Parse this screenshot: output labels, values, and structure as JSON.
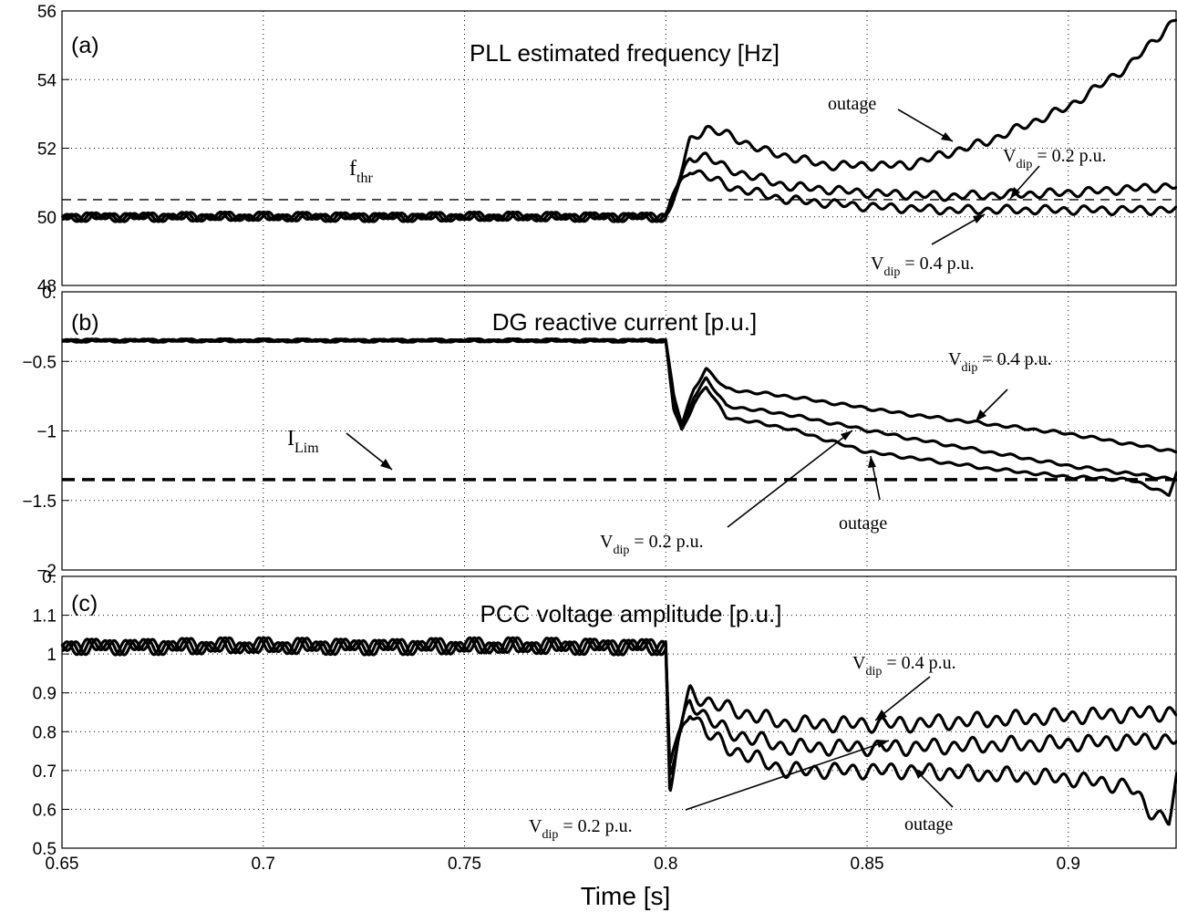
{
  "chart_data": [
    {
      "type": "line",
      "panel_label": "(a)",
      "title": "PLL estimated frequency [Hz]",
      "xlim": [
        0.65,
        0.927
      ],
      "ylim": [
        48,
        56
      ],
      "yticks": [
        "48",
        "50",
        "52",
        "54",
        "56"
      ],
      "grid": true,
      "reference_lines": [
        {
          "label": "f",
          "subscript": "thr",
          "value": 50.5,
          "style": "thin-dashed"
        }
      ],
      "series": [
        {
          "name": "outage",
          "x": [
            0.65,
            0.8,
            0.803,
            0.806,
            0.81,
            0.815,
            0.825,
            0.84,
            0.86,
            0.88,
            0.9,
            0.915,
            0.927
          ],
          "y": [
            50.0,
            50.0,
            51.0,
            52.2,
            52.6,
            52.4,
            51.9,
            51.5,
            51.5,
            52.2,
            53.2,
            54.4,
            55.8
          ]
        },
        {
          "name": "V_dip = 0.2 p.u.",
          "x": [
            0.65,
            0.8,
            0.803,
            0.806,
            0.81,
            0.815,
            0.83,
            0.85,
            0.87,
            0.9,
            0.927
          ],
          "y": [
            50.0,
            50.0,
            50.9,
            51.7,
            51.8,
            51.4,
            50.9,
            50.7,
            50.6,
            50.7,
            50.9
          ]
        },
        {
          "name": "V_dip = 0.4 p.u.",
          "x": [
            0.65,
            0.8,
            0.803,
            0.806,
            0.81,
            0.815,
            0.83,
            0.85,
            0.87,
            0.9,
            0.927
          ],
          "y": [
            50.0,
            50.0,
            50.8,
            51.4,
            51.2,
            50.9,
            50.5,
            50.3,
            50.2,
            50.2,
            50.2
          ]
        }
      ],
      "annotations": [
        "outage",
        "V_dip = 0.2 p.u.",
        "V_dip = 0.4 p.u.",
        "f_thr"
      ]
    },
    {
      "type": "line",
      "panel_label": "(b)",
      "title": "DG reactive current [p.u.]",
      "xlim": [
        0.65,
        0.927
      ],
      "ylim": [
        -2,
        0
      ],
      "yticks": [
        "−2",
        "−1.5",
        "−1",
        "−0.5",
        "0."
      ],
      "grid": true,
      "reference_lines": [
        {
          "label": "I",
          "subscript": "Lim",
          "value": -1.35,
          "style": "thick-dashed"
        }
      ],
      "series": [
        {
          "name": "V_dip = 0.4 p.u.",
          "x": [
            0.65,
            0.8,
            0.802,
            0.804,
            0.807,
            0.81,
            0.815,
            0.83,
            0.86,
            0.9,
            0.927
          ],
          "y": [
            -0.35,
            -0.35,
            -0.75,
            -0.95,
            -0.7,
            -0.55,
            -0.7,
            -0.75,
            -0.88,
            -1.02,
            -1.15
          ]
        },
        {
          "name": "V_dip = 0.2 p.u.",
          "x": [
            0.65,
            0.8,
            0.802,
            0.804,
            0.807,
            0.81,
            0.815,
            0.83,
            0.86,
            0.9,
            0.927
          ],
          "y": [
            -0.35,
            -0.35,
            -0.8,
            -1.0,
            -0.75,
            -0.62,
            -0.82,
            -0.88,
            -1.05,
            -1.25,
            -1.35
          ]
        },
        {
          "name": "outage",
          "x": [
            0.65,
            0.8,
            0.802,
            0.804,
            0.807,
            0.81,
            0.815,
            0.83,
            0.85,
            0.88,
            0.9,
            0.915,
            0.922,
            0.925,
            0.927
          ],
          "y": [
            -0.35,
            -0.35,
            -0.85,
            -1.0,
            -0.8,
            -0.68,
            -0.9,
            -0.98,
            -1.15,
            -1.27,
            -1.33,
            -1.35,
            -1.42,
            -1.46,
            -1.3
          ]
        }
      ],
      "annotations": [
        "V_dip = 0.4 p.u.",
        "I_Lim",
        "outage",
        "V_dip = 0.2 p.u."
      ]
    },
    {
      "type": "line",
      "panel_label": "(c)",
      "title": "PCC voltage amplitude [p.u.]",
      "xlim": [
        0.65,
        0.927
      ],
      "ylim": [
        0.5,
        1.2
      ],
      "yticks": [
        "0.5",
        "0.6",
        "0.7",
        "0.8",
        "0.9",
        "1",
        "1.1",
        "0."
      ],
      "xticks": [
        "0.65",
        "0.7",
        "0.75",
        "0.8",
        "0.85",
        "0.9"
      ],
      "xlabel": "Time [s]",
      "grid": true,
      "series": [
        {
          "name": "V_dip = 0.4 p.u.",
          "x": [
            0.65,
            0.8,
            0.801,
            0.803,
            0.806,
            0.81,
            0.815,
            0.83,
            0.86,
            0.9,
            0.927
          ],
          "y": [
            1.02,
            1.02,
            0.7,
            0.8,
            0.9,
            0.88,
            0.86,
            0.82,
            0.82,
            0.84,
            0.85
          ]
        },
        {
          "name": "V_dip = 0.2 p.u.",
          "x": [
            0.65,
            0.8,
            0.801,
            0.803,
            0.806,
            0.81,
            0.815,
            0.83,
            0.86,
            0.9,
            0.927
          ],
          "y": [
            1.02,
            1.02,
            0.68,
            0.78,
            0.88,
            0.84,
            0.8,
            0.76,
            0.76,
            0.77,
            0.78
          ]
        },
        {
          "name": "outage",
          "x": [
            0.65,
            0.8,
            0.801,
            0.803,
            0.806,
            0.81,
            0.815,
            0.83,
            0.86,
            0.9,
            0.915,
            0.92,
            0.925,
            0.927
          ],
          "y": [
            1.02,
            1.02,
            0.65,
            0.76,
            0.86,
            0.8,
            0.76,
            0.7,
            0.7,
            0.68,
            0.66,
            0.6,
            0.57,
            0.68
          ]
        }
      ],
      "annotations": [
        "V_dip = 0.4 p.u.",
        "V_dip = 0.2 p.u.",
        "outage"
      ]
    }
  ],
  "labels": {
    "panel_a": "(a)",
    "panel_b": "(b)",
    "panel_c": "(c)",
    "title_a": "PLL estimated frequency [Hz]",
    "title_b": "DG reactive current [p.u.]",
    "title_c": "PCC voltage amplitude [p.u.]",
    "xlabel": "Time [s]",
    "outage": "outage",
    "vdip_v": "V",
    "vdip_sub": "dip",
    "vdip_02": " = 0.2 p.u.",
    "vdip_04": " = 0.4 p.u.",
    "fthr_f": "f",
    "fthr_sub": "thr",
    "ilim_i": "I",
    "ilim_sub": "Lim"
  }
}
